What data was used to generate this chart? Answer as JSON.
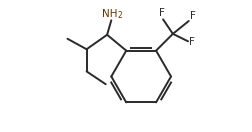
{
  "background_color": "#ffffff",
  "line_color": "#2a2a2a",
  "line_width": 1.4,
  "fig_width": 2.52,
  "fig_height": 1.32,
  "dpi": 100,
  "nh2_color": "#5c3a00",
  "f_color": "#2a2a2a",
  "xlim": [
    0.0,
    9.5
  ],
  "ylim": [
    0.2,
    5.8
  ]
}
